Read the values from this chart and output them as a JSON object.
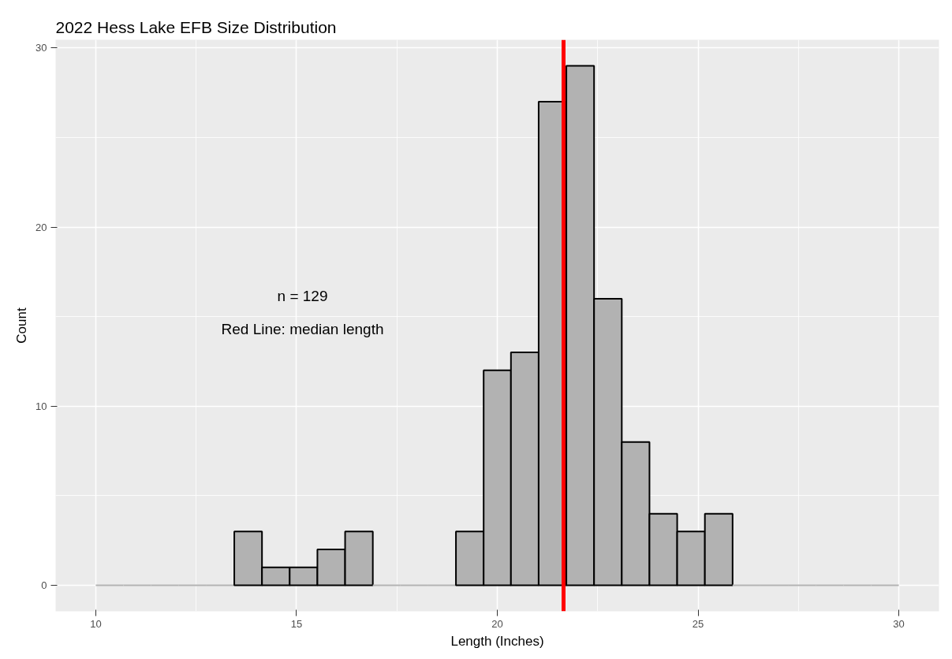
{
  "chart_data": {
    "type": "histogram",
    "title": "2022 Hess Lake EFB Size Distribution",
    "xlabel": "Length (Inches)",
    "ylabel": "Count",
    "bins": [
      10,
      10.69,
      11.38,
      12.07,
      12.76,
      13.45,
      14.14,
      14.83,
      15.52,
      16.21,
      16.9,
      17.59,
      18.28,
      18.97,
      19.66,
      20.34,
      21.03,
      21.72,
      22.41,
      23.1,
      23.79,
      24.48,
      25.17,
      25.86,
      26.55,
      27.24,
      27.93,
      28.62,
      29.31,
      30
    ],
    "values": [
      0,
      0,
      0,
      0,
      0,
      3,
      1,
      1,
      2,
      3,
      0,
      0,
      0,
      3,
      12,
      13,
      27,
      29,
      16,
      8,
      4,
      3,
      4,
      0,
      0,
      0,
      0,
      0,
      0
    ],
    "color": "#b2b2b2",
    "xlim": [
      9,
      31
    ],
    "xticks": [
      10,
      15,
      20,
      25,
      30
    ],
    "ylim": [
      -1.45,
      30.45
    ],
    "yticks": [
      0,
      10,
      20,
      30
    ],
    "grid": true,
    "ref_lines": [
      {
        "axis": "x",
        "value": 21.65,
        "color": "#ff0000"
      }
    ],
    "annotations": [
      "n = 129",
      "Red Line: median length"
    ]
  }
}
